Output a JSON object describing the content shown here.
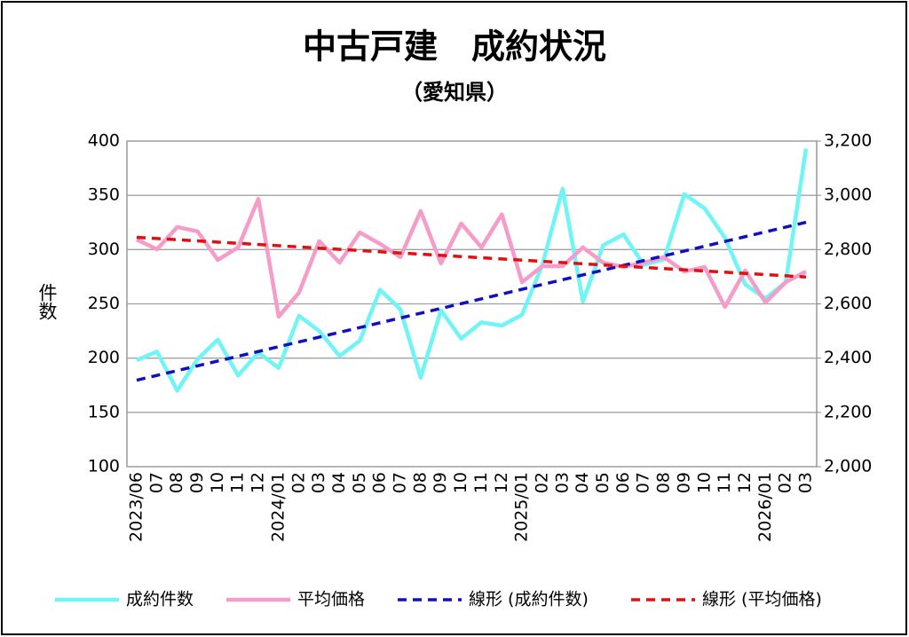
{
  "chart_data": {
    "type": "line",
    "title": "中古戸建　成約状況",
    "subtitle": "（愛知県）",
    "ylabel": "件数",
    "categories": [
      "2023/06",
      "07",
      "08",
      "09",
      "10",
      "11",
      "12",
      "2024/01",
      "02",
      "03",
      "04",
      "05",
      "06",
      "07",
      "08",
      "09",
      "10",
      "11",
      "12",
      "2025/01",
      "02",
      "03",
      "04",
      "05",
      "06",
      "07",
      "08",
      "09",
      "10",
      "11",
      "12",
      "2026/01",
      "02",
      "03"
    ],
    "ylim": [
      100,
      400
    ],
    "yticks": [
      100,
      150,
      200,
      250,
      300,
      350,
      400
    ],
    "y2lim": [
      2000,
      3200
    ],
    "y2ticks": [
      {
        "value": 2000,
        "label": "2,000"
      },
      {
        "value": 2200,
        "label": "2,200"
      },
      {
        "value": 2400,
        "label": "2,400"
      },
      {
        "value": 2600,
        "label": "2,600"
      },
      {
        "value": 2800,
        "label": "2,800"
      },
      {
        "value": 3000,
        "label": "3,000"
      },
      {
        "value": 3200,
        "label": "3,200"
      }
    ],
    "grid": true,
    "legend": "bottom",
    "series": [
      {
        "name": "成約件数",
        "color": "#6ff5f5",
        "values": [
          198,
          206,
          170,
          199,
          217,
          184,
          205,
          191,
          239,
          225,
          202,
          216,
          263,
          245,
          182,
          244,
          218,
          233,
          230,
          240,
          286,
          356,
          252,
          304,
          314,
          286,
          291,
          351,
          338,
          311,
          268,
          255,
          270,
          393
        ]
      },
      {
        "name": "平均価格",
        "color": "#f59cc8",
        "axis": "y2",
        "values": [
          2837,
          2801,
          2883,
          2867,
          2762,
          2808,
          2987,
          2553,
          2641,
          2831,
          2752,
          2863,
          2821,
          2772,
          2942,
          2749,
          2896,
          2808,
          2930,
          2680,
          2739,
          2739,
          2808,
          2752,
          2736,
          2752,
          2772,
          2719,
          2736,
          2589,
          2723,
          2605,
          2680,
          2719
        ]
      },
      {
        "name": "線形 (成約件数)",
        "color": "#1010c0",
        "trend_of": 0
      },
      {
        "name": "線形 (平均価格)",
        "color": "#e01010",
        "trend_of": 1
      }
    ]
  }
}
